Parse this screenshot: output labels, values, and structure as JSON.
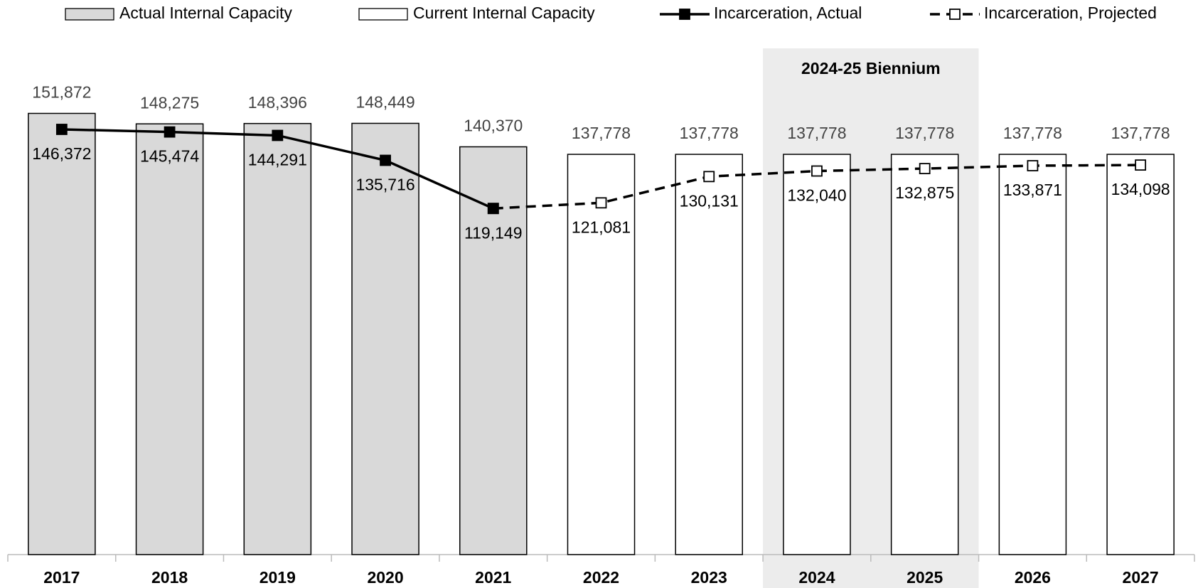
{
  "chart_data": {
    "type": "bar",
    "categories": [
      "2017",
      "2018",
      "2019",
      "2020",
      "2021",
      "2022",
      "2023",
      "2024",
      "2025",
      "2026",
      "2027"
    ],
    "ylim": [
      0,
      175000
    ],
    "legend": "top",
    "highlight": {
      "label": "2024-25 Biennium",
      "from": "2024",
      "to": "2025",
      "color": "#ececec"
    },
    "series": [
      {
        "name": "Actual Internal Capacity",
        "type": "bar",
        "color": "#d9d9d9",
        "values": [
          151872,
          148275,
          148396,
          148449,
          140370,
          null,
          null,
          null,
          null,
          null,
          null
        ],
        "value_labels": [
          "151,872",
          "148,275",
          "148,396",
          "148,449",
          "140,370",
          null,
          null,
          null,
          null,
          null,
          null
        ]
      },
      {
        "name": "Current Internal Capacity",
        "type": "bar",
        "color": "#ffffff",
        "values": [
          null,
          null,
          null,
          null,
          null,
          137778,
          137778,
          137778,
          137778,
          137778,
          137778
        ],
        "value_labels": [
          null,
          null,
          null,
          null,
          null,
          "137,778",
          "137,778",
          "137,778",
          "137,778",
          "137,778",
          "137,778"
        ]
      },
      {
        "name": "Incarceration, Projected",
        "type": "line",
        "dashed": true,
        "marker_fill": "#ffffff",
        "color": "#000000",
        "values": [
          null,
          null,
          null,
          null,
          119149,
          121081,
          130131,
          132040,
          132875,
          133871,
          134098
        ],
        "value_labels": [
          null,
          null,
          null,
          null,
          null,
          "121,081",
          "130,131",
          "132,040",
          "132,875",
          "133,871",
          "134,098"
        ]
      },
      {
        "name": "Incarceration, Actual",
        "type": "line",
        "dashed": false,
        "marker_fill": "#000000",
        "color": "#000000",
        "values": [
          146372,
          145474,
          144291,
          135716,
          119149,
          null,
          null,
          null,
          null,
          null,
          null
        ],
        "value_labels": [
          "146,372",
          "145,474",
          "144,291",
          "135,716",
          "119,149",
          null,
          null,
          null,
          null,
          null,
          null
        ]
      }
    ]
  }
}
